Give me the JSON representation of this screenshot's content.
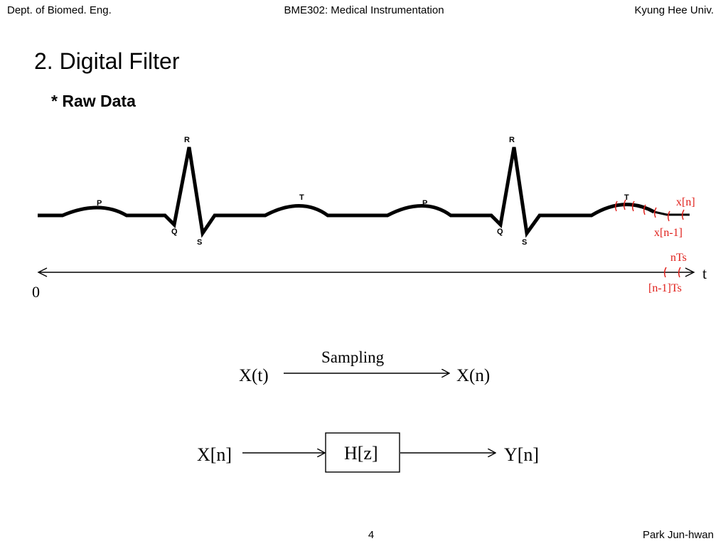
{
  "header": {
    "left": "Dept. of Biomed. Eng.",
    "center": "BME302: Medical Instrumentation",
    "right": "Kyung Hee Univ."
  },
  "slide": {
    "title": "2. Digital Filter",
    "heading": "* Raw Data"
  },
  "ecg": {
    "wave_labels": {
      "p1": "P",
      "q1": "Q",
      "r1": "R",
      "s1": "S",
      "t1": "T",
      "p2": "P",
      "q2": "Q",
      "r2": "R",
      "s2": "S",
      "t2": "T"
    },
    "sample_labels": {
      "current": "x[n]",
      "previous": "x[n-1]",
      "time_current": "nTs",
      "time_previous": "[n-1]Ts"
    },
    "axis": {
      "origin": "0",
      "variable": "t"
    },
    "sample_color": "#e0201b"
  },
  "sampling": {
    "input": "X(t)",
    "label": "Sampling",
    "output": "X(n)"
  },
  "filter": {
    "input": "X[n]",
    "block": "H[z]",
    "output": "Y[n]"
  },
  "footer": {
    "page_number": "4",
    "author": "Park Jun-hwan"
  }
}
